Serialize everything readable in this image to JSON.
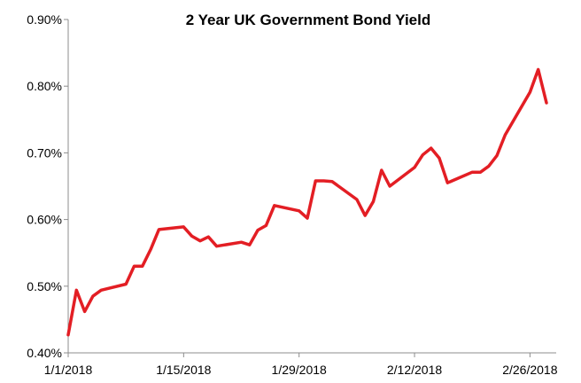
{
  "chart_data": {
    "type": "line",
    "title": "2 Year UK Government Bond Yield",
    "xlabel": "",
    "ylabel": "",
    "ylim": [
      0.4,
      0.9
    ],
    "y_tick_labels": [
      "0.40%",
      "0.50%",
      "0.60%",
      "0.70%",
      "0.80%",
      "0.90%"
    ],
    "y_tick_values": [
      0.4,
      0.5,
      0.6,
      0.7,
      0.8,
      0.9
    ],
    "x_tick_labels": [
      "1/1/2018",
      "1/15/2018",
      "1/29/2018",
      "2/12/2018",
      "2/26/2018"
    ],
    "x_tick_dates": [
      "2018-01-01",
      "2018-01-15",
      "2018-01-29",
      "2018-02-12",
      "2018-02-26"
    ],
    "xlim": [
      "2018-01-01",
      "2018-02-28"
    ],
    "grid": false,
    "series": [
      {
        "color": "#e31e24",
        "x": [
          "2018-01-01",
          "2018-01-02",
          "2018-01-03",
          "2018-01-04",
          "2018-01-05",
          "2018-01-08",
          "2018-01-09",
          "2018-01-10",
          "2018-01-11",
          "2018-01-12",
          "2018-01-15",
          "2018-01-16",
          "2018-01-17",
          "2018-01-18",
          "2018-01-19",
          "2018-01-22",
          "2018-01-23",
          "2018-01-24",
          "2018-01-25",
          "2018-01-26",
          "2018-01-29",
          "2018-01-30",
          "2018-01-31",
          "2018-02-01",
          "2018-02-02",
          "2018-02-05",
          "2018-02-06",
          "2018-02-07",
          "2018-02-08",
          "2018-02-09",
          "2018-02-12",
          "2018-02-13",
          "2018-02-14",
          "2018-02-15",
          "2018-02-16",
          "2018-02-19",
          "2018-02-20",
          "2018-02-21",
          "2018-02-22",
          "2018-02-23",
          "2018-02-26",
          "2018-02-27",
          "2018-02-28"
        ],
        "y": [
          0.427,
          0.494,
          0.462,
          0.485,
          0.494,
          0.503,
          0.53,
          0.53,
          0.555,
          0.585,
          0.589,
          0.575,
          0.568,
          0.574,
          0.56,
          0.566,
          0.562,
          0.584,
          0.591,
          0.621,
          0.613,
          0.602,
          0.658,
          0.658,
          0.657,
          0.63,
          0.606,
          0.627,
          0.674,
          0.65,
          0.678,
          0.697,
          0.707,
          0.692,
          0.655,
          0.671,
          0.671,
          0.68,
          0.696,
          0.727,
          0.791,
          0.825,
          0.775
        ]
      }
    ]
  }
}
